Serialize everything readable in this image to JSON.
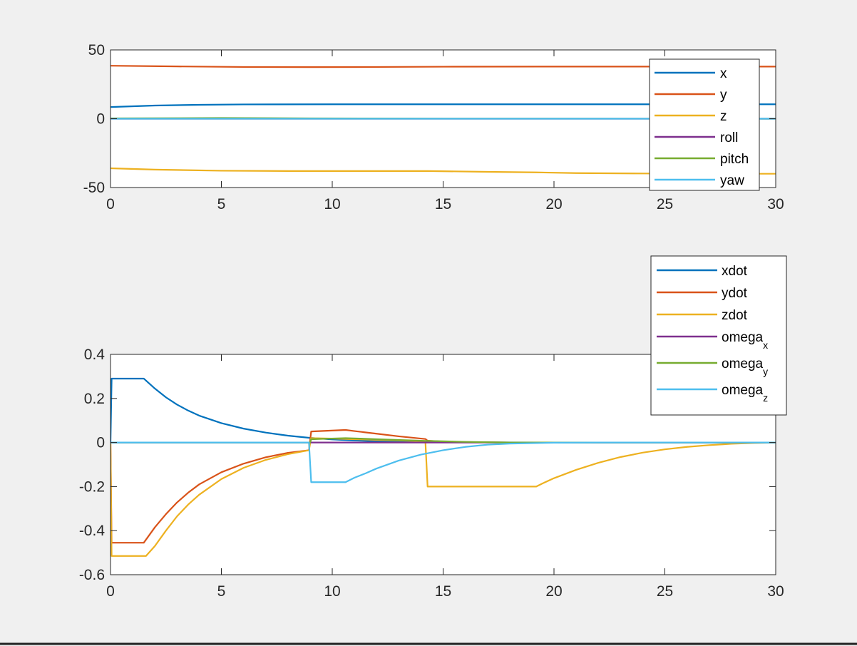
{
  "colors": {
    "figure_bg": "#f0f0f0",
    "axes_bg": "#ffffff",
    "axis_color": "#262626"
  },
  "chart_data": [
    {
      "type": "line",
      "title": "",
      "xlabel": "",
      "ylabel": "",
      "xlim": [
        0,
        30
      ],
      "ylim": [
        -50,
        50
      ],
      "xticks": [
        0,
        5,
        10,
        15,
        20,
        25,
        30
      ],
      "yticks": [
        -50,
        0,
        50
      ],
      "grid": false,
      "legend_position": "top-right",
      "series": [
        {
          "name": "x",
          "color": "#0072BD",
          "points": [
            [
              0,
              8.5
            ],
            [
              2,
              9.6
            ],
            [
              4,
              10.1
            ],
            [
              6,
              10.4
            ],
            [
              10,
              10.5
            ],
            [
              15,
              10.5
            ],
            [
              20,
              10.5
            ],
            [
              25,
              10.5
            ],
            [
              30,
              10.5
            ]
          ]
        },
        {
          "name": "y",
          "color": "#D95319",
          "points": [
            [
              0,
              38.5
            ],
            [
              3,
              38.0
            ],
            [
              6,
              37.6
            ],
            [
              9,
              37.5
            ],
            [
              12,
              37.6
            ],
            [
              15,
              37.8
            ],
            [
              20,
              37.9
            ],
            [
              25,
              37.9
            ],
            [
              30,
              37.9
            ]
          ]
        },
        {
          "name": "z",
          "color": "#EDB120",
          "points": [
            [
              0,
              -36.0
            ],
            [
              2,
              -37.0
            ],
            [
              5,
              -37.8
            ],
            [
              8,
              -38.0
            ],
            [
              12,
              -38.0
            ],
            [
              14.3,
              -38.0
            ],
            [
              17,
              -38.6
            ],
            [
              19.2,
              -39.0
            ],
            [
              21,
              -39.5
            ],
            [
              24,
              -39.8
            ],
            [
              27,
              -40.0
            ],
            [
              30,
              -40.0
            ]
          ]
        },
        {
          "name": "roll",
          "color": "#7E2F8E",
          "points": [
            [
              0,
              0
            ],
            [
              30,
              0
            ]
          ]
        },
        {
          "name": "pitch",
          "color": "#77AC30",
          "points": [
            [
              0,
              0.3
            ],
            [
              5,
              0.5
            ],
            [
              9,
              0.3
            ],
            [
              15,
              0.1
            ],
            [
              30,
              0
            ]
          ]
        },
        {
          "name": "yaw",
          "color": "#4DBEEE",
          "points": [
            [
              0,
              0
            ],
            [
              30,
              0
            ]
          ]
        }
      ],
      "legend": [
        {
          "label": "x"
        },
        {
          "label": "y"
        },
        {
          "label": "z"
        },
        {
          "label": "roll"
        },
        {
          "label": "pitch"
        },
        {
          "label": "yaw"
        }
      ]
    },
    {
      "type": "line",
      "title": "",
      "xlabel": "",
      "ylabel": "",
      "xlim": [
        0,
        30
      ],
      "ylim": [
        -0.6,
        0.4
      ],
      "xticks": [
        0,
        5,
        10,
        15,
        20,
        25,
        30
      ],
      "yticks": [
        -0.6,
        -0.4,
        -0.2,
        0,
        0.2,
        0.4
      ],
      "grid": false,
      "legend_position": "top-right",
      "series": [
        {
          "name": "xdot",
          "color": "#0072BD",
          "points": [
            [
              0,
              0
            ],
            [
              0.05,
              0.29
            ],
            [
              1.5,
              0.29
            ],
            [
              2,
              0.245
            ],
            [
              2.5,
              0.205
            ],
            [
              3,
              0.172
            ],
            [
              3.5,
              0.145
            ],
            [
              4,
              0.122
            ],
            [
              5,
              0.088
            ],
            [
              6,
              0.063
            ],
            [
              7,
              0.045
            ],
            [
              8,
              0.031
            ],
            [
              9,
              0.021
            ],
            [
              10,
              0.014
            ],
            [
              11,
              0.009
            ],
            [
              12,
              0.006
            ],
            [
              13,
              0.004
            ],
            [
              14,
              0.002
            ],
            [
              16,
              0.001
            ],
            [
              20,
              0
            ],
            [
              30,
              0
            ]
          ]
        },
        {
          "name": "ydot",
          "color": "#D95319",
          "points": [
            [
              0,
              0
            ],
            [
              0.05,
              -0.455
            ],
            [
              1.5,
              -0.455
            ],
            [
              2,
              -0.385
            ],
            [
              2.5,
              -0.325
            ],
            [
              3,
              -0.272
            ],
            [
              3.5,
              -0.228
            ],
            [
              4,
              -0.19
            ],
            [
              5,
              -0.135
            ],
            [
              6,
              -0.096
            ],
            [
              7,
              -0.067
            ],
            [
              8,
              -0.047
            ],
            [
              8.95,
              -0.035
            ],
            [
              9.05,
              0.05
            ],
            [
              10.6,
              0.057
            ],
            [
              11,
              0.052
            ],
            [
              12,
              0.04
            ],
            [
              13,
              0.028
            ],
            [
              14.2,
              0.016
            ],
            [
              14.3,
              0.008
            ],
            [
              15,
              0.004
            ],
            [
              16,
              0.002
            ],
            [
              18,
              0
            ],
            [
              30,
              0
            ]
          ]
        },
        {
          "name": "zdot",
          "color": "#EDB120",
          "points": [
            [
              0,
              0
            ],
            [
              0.05,
              -0.515
            ],
            [
              1.6,
              -0.515
            ],
            [
              2,
              -0.47
            ],
            [
              2.5,
              -0.4
            ],
            [
              3,
              -0.335
            ],
            [
              3.5,
              -0.282
            ],
            [
              4,
              -0.237
            ],
            [
              5,
              -0.166
            ],
            [
              6,
              -0.115
            ],
            [
              7,
              -0.079
            ],
            [
              8,
              -0.053
            ],
            [
              8.95,
              -0.035
            ],
            [
              9.05,
              0.02
            ],
            [
              10,
              0.018
            ],
            [
              11,
              0.015
            ],
            [
              12,
              0.012
            ],
            [
              13,
              0.009
            ],
            [
              14.2,
              0.006
            ],
            [
              14.3,
              -0.2
            ],
            [
              19.2,
              -0.2
            ],
            [
              19.5,
              -0.185
            ],
            [
              20,
              -0.162
            ],
            [
              21,
              -0.124
            ],
            [
              22,
              -0.092
            ],
            [
              23,
              -0.066
            ],
            [
              24,
              -0.046
            ],
            [
              25,
              -0.031
            ],
            [
              26,
              -0.02
            ],
            [
              27,
              -0.012
            ],
            [
              28,
              -0.006
            ],
            [
              29,
              -0.002
            ],
            [
              30,
              0
            ]
          ]
        },
        {
          "name": "omegax",
          "color": "#7E2F8E",
          "points": [
            [
              0,
              0
            ],
            [
              30,
              0
            ]
          ]
        },
        {
          "name": "omegay",
          "color": "#77AC30",
          "points": [
            [
              0,
              0
            ],
            [
              9,
              0
            ],
            [
              9.05,
              0.015
            ],
            [
              10.6,
              0.02
            ],
            [
              12,
              0.015
            ],
            [
              14,
              0.008
            ],
            [
              16,
              0.003
            ],
            [
              18,
              0
            ],
            [
              30,
              0
            ]
          ]
        },
        {
          "name": "omegaz",
          "color": "#4DBEEE",
          "points": [
            [
              0,
              0
            ],
            [
              8.95,
              0
            ],
            [
              9.05,
              -0.18
            ],
            [
              10.6,
              -0.18
            ],
            [
              11,
              -0.16
            ],
            [
              11.5,
              -0.14
            ],
            [
              12,
              -0.118
            ],
            [
              13,
              -0.082
            ],
            [
              14,
              -0.055
            ],
            [
              15,
              -0.035
            ],
            [
              16,
              -0.02
            ],
            [
              17,
              -0.01
            ],
            [
              18,
              -0.005
            ],
            [
              20,
              -0.001
            ],
            [
              22,
              0
            ],
            [
              30,
              0
            ]
          ]
        }
      ],
      "legend": [
        {
          "label": "xdot",
          "sub": ""
        },
        {
          "label": "ydot",
          "sub": ""
        },
        {
          "label": "zdot",
          "sub": ""
        },
        {
          "label": "omega",
          "sub": "x"
        },
        {
          "label": "omega",
          "sub": "y"
        },
        {
          "label": "omega",
          "sub": "z"
        }
      ]
    }
  ]
}
